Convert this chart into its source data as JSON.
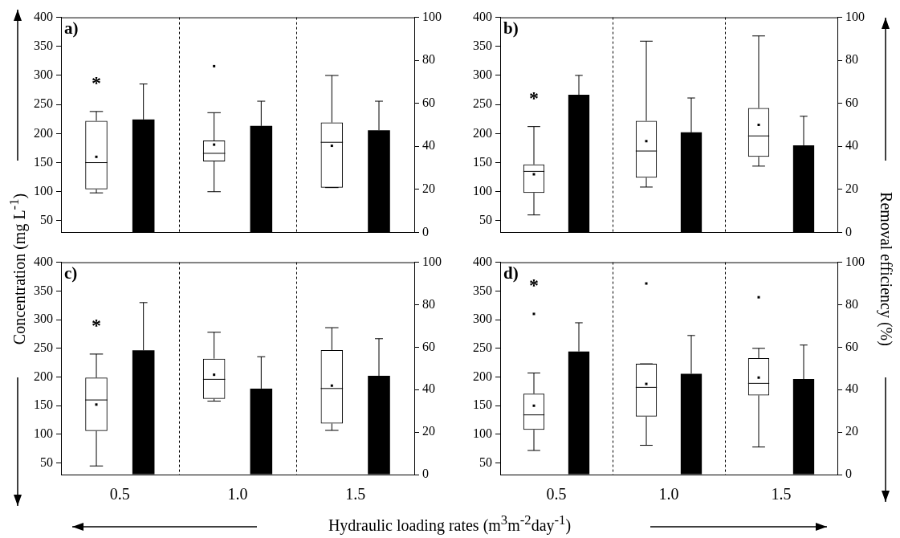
{
  "chart_data": [
    {
      "type": "box",
      "categories": [
        "0.5",
        "1.0",
        "1.5"
      ],
      "xlabel": "Hydraulic loading rates (m$^{3}$m$^{-2}$day$^{-1}$)",
      "ylabel": "Concentration (mg L$^{-1}$)",
      "y2label": "Removal efficiency (%)",
      "ylim": [
        30,
        400
      ],
      "yticks": [
        50,
        100,
        150,
        200,
        250,
        300,
        350,
        400
      ],
      "y2lim": [
        0,
        100
      ],
      "y2ticks": [
        0,
        20,
        40,
        60,
        80,
        100
      ],
      "grid": "x",
      "tick_labels": "y",
      "series": [
        {
          "color": "#000000",
          "boxes": [
            {
              "low": 98,
              "q1": 104,
              "median": 150,
              "q3": 222,
              "high": 238,
              "mean": 160
            },
            {
              "low": 100,
              "q1": 152,
              "median": 166,
              "q3": 188,
              "high": 236,
              "mean": 181,
              "outliers": [
                316
              ]
            },
            {
              "low": 107,
              "q1": 107,
              "median": 185,
              "q3": 219,
              "high": 300,
              "mean": 179
            }
          ]
        },
        {
          "type": "bar",
          "axis": "y2",
          "color": "#000000",
          "values": [
            52.5,
            49.5,
            47.5
          ],
          "errors": [
            [
              52.5,
              69
            ],
            [
              49.5,
              61
            ],
            [
              47.5,
              61
            ]
          ]
        }
      ],
      "annotations": [
        "a)",
        "*"
      ]
    },
    {
      "type": "box",
      "categories": [
        "0.5",
        "1.0",
        "1.5"
      ],
      "ylim": [
        30,
        400
      ],
      "yticks": [
        50,
        100,
        150,
        200,
        250,
        300,
        350,
        400
      ],
      "y2lim": [
        0,
        100
      ],
      "y2ticks": [
        0,
        20,
        40,
        60,
        80,
        100
      ],
      "grid": "x",
      "tick_labels": "y",
      "series": [
        {
          "color": "#000000",
          "boxes": [
            {
              "low": 60,
              "q1": 98,
              "median": 135,
              "q3": 147,
              "high": 212,
              "mean": 130
            },
            {
              "low": 108,
              "q1": 124,
              "median": 170,
              "q3": 222,
              "high": 359,
              "mean": 187
            },
            {
              "low": 144,
              "q1": 160,
              "median": 196,
              "q3": 244,
              "high": 368,
              "mean": 215
            }
          ]
        },
        {
          "type": "bar",
          "axis": "y2",
          "color": "#000000",
          "values": [
            64,
            46.5,
            40.5
          ],
          "errors": [
            [
              64,
              73
            ],
            [
              46.5,
              62.5
            ],
            [
              40.5,
              54
            ]
          ]
        }
      ],
      "annotations": [
        "b)",
        "*"
      ]
    },
    {
      "type": "box",
      "categories": [
        "0.5",
        "1.0",
        "1.5"
      ],
      "ylim": [
        30,
        400
      ],
      "yticks": [
        50,
        100,
        150,
        200,
        250,
        300,
        350,
        400
      ],
      "y2lim": [
        0,
        100
      ],
      "y2ticks": [
        0,
        20,
        40,
        60,
        80,
        100
      ],
      "grid": "x",
      "series": [
        {
          "color": "#000000",
          "boxes": [
            {
              "low": 45,
              "q1": 106,
              "median": 160,
              "q3": 199,
              "high": 240,
              "mean": 152
            },
            {
              "low": 158,
              "q1": 162,
              "median": 196,
              "q3": 232,
              "high": 278,
              "mean": 204
            },
            {
              "low": 107,
              "q1": 119,
              "median": 180,
              "q3": 247,
              "high": 286,
              "mean": 185
            }
          ]
        },
        {
          "type": "bar",
          "axis": "y2",
          "color": "#000000",
          "values": [
            58.5,
            40.5,
            46.5
          ],
          "errors": [
            [
              58.5,
              81
            ],
            [
              40.5,
              55.5
            ],
            [
              46.5,
              64
            ]
          ]
        }
      ],
      "annotations": [
        "c)",
        "*"
      ]
    },
    {
      "type": "box",
      "categories": [
        "0.5",
        "1.0",
        "1.5"
      ],
      "ylim": [
        30,
        400
      ],
      "yticks": [
        50,
        100,
        150,
        200,
        250,
        300,
        350,
        400
      ],
      "y2lim": [
        0,
        100
      ],
      "y2ticks": [
        0,
        20,
        40,
        60,
        80,
        100
      ],
      "grid": "x",
      "series": [
        {
          "color": "#000000",
          "boxes": [
            {
              "low": 72,
              "q1": 108,
              "median": 134,
              "q3": 171,
              "high": 207,
              "mean": 150,
              "outliers": [
                310
              ]
            },
            {
              "low": 81,
              "q1": 131,
              "median": 182,
              "q3": 223,
              "high": 223,
              "mean": 188,
              "outliers": [
                363
              ]
            },
            {
              "low": 78,
              "q1": 168,
              "median": 189,
              "q3": 233,
              "high": 250,
              "mean": 199,
              "outliers": [
                339
              ]
            }
          ]
        },
        {
          "type": "bar",
          "axis": "y2",
          "color": "#000000",
          "values": [
            58,
            47.5,
            45
          ],
          "errors": [
            [
              58,
              71.5
            ],
            [
              47.5,
              65.5
            ],
            [
              45,
              61
            ]
          ]
        }
      ],
      "annotations": [
        "d)",
        "*"
      ]
    }
  ]
}
